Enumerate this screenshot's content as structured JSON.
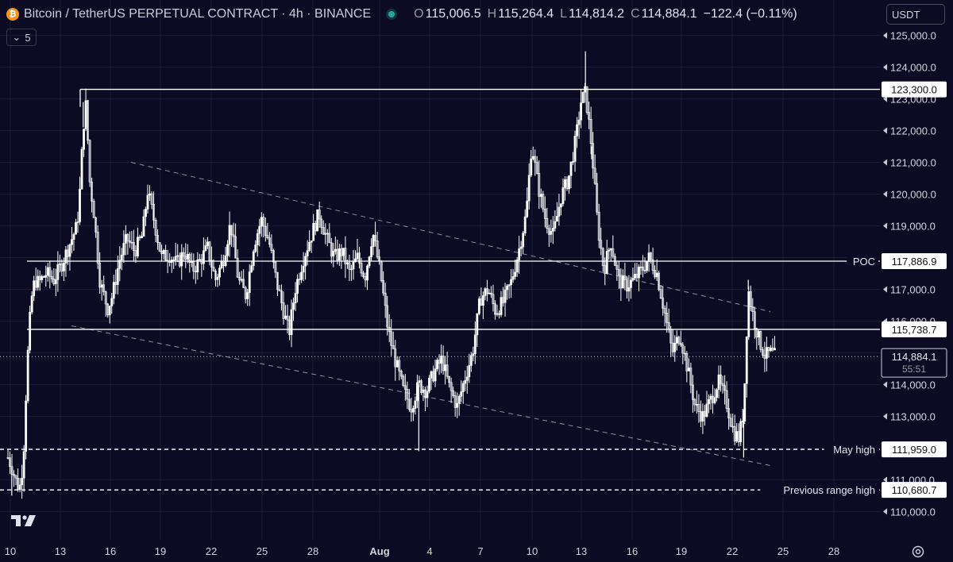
{
  "header": {
    "title": "Bitcoin / TetherUS PERPETUAL CONTRACT · 4h · BINANCE",
    "btc_symbol": "₿",
    "o_label": "O",
    "o_value": "115,006.5",
    "h_label": "H",
    "h_value": "115,264.4",
    "l_label": "L",
    "l_value": "114,814.2",
    "c_label": "C",
    "c_value": "114,884.1",
    "change": "−122.4 (−0.11%)"
  },
  "interval_pill": {
    "label": "5"
  },
  "currency": {
    "label": "USDT"
  },
  "colors": {
    "background": "#0d0b24",
    "candle": "#ffffff",
    "grid": "#1c1b36",
    "axis_text": "#d1d4dc"
  },
  "chart_data": {
    "type": "candlestick",
    "y_axis": {
      "range": [
        109700,
        125200
      ],
      "ticks": [
        110000,
        111000,
        112000,
        113000,
        114000,
        115000,
        116000,
        117000,
        118000,
        119000,
        120000,
        121000,
        122000,
        123000,
        124000,
        125000
      ],
      "tick_labels": [
        "110,000.0",
        "111,000.0",
        "112,000.0",
        "113,000.0",
        "114,000.0",
        "115,000.0",
        "116,000.0",
        "117,000.0",
        "118,000.0",
        "119,000.0",
        "120,000.0",
        "121,000.0",
        "122,000.0",
        "123,000.0",
        "124,000.0",
        "125,000.0"
      ]
    },
    "x_axis": {
      "tick_labels": [
        "10",
        "13",
        "16",
        "19",
        "22",
        "25",
        "28",
        "Aug",
        "4",
        "7",
        "10",
        "13",
        "16",
        "19",
        "22",
        "25",
        "28"
      ]
    },
    "horizontal_levels": [
      {
        "name": "range-top",
        "value": 123300.0,
        "label": "123,300.0",
        "style": "solid",
        "text": ""
      },
      {
        "name": "poc",
        "value": 117886.9,
        "label": "117,886.9",
        "style": "solid",
        "text": "POC"
      },
      {
        "name": "range-mid",
        "value": 115738.7,
        "label": "115,738.7",
        "style": "solid",
        "text": ""
      },
      {
        "name": "may-high",
        "value": 111959.0,
        "label": "111,959.0",
        "style": "dashed",
        "text": "May high"
      },
      {
        "name": "previous-range-high",
        "value": 110680.7,
        "label": "110,680.7",
        "style": "dashed",
        "text": "Previous range high"
      }
    ],
    "current_price": {
      "value": 114884.1,
      "label": "114,884.1",
      "countdown": "55:51"
    },
    "trend_channel": {
      "style": "dashed"
    },
    "price_path": [
      [
        0,
        111700
      ],
      [
        0.5,
        111400
      ],
      [
        1,
        111000
      ],
      [
        1.5,
        110700
      ],
      [
        2,
        111600
      ],
      [
        2.5,
        114600
      ],
      [
        3,
        116600
      ],
      [
        3.5,
        117300
      ],
      [
        4,
        117200
      ],
      [
        5,
        117500
      ],
      [
        6,
        117300
      ],
      [
        7,
        117800
      ],
      [
        8,
        118400
      ],
      [
        9,
        119000
      ],
      [
        9.4,
        120200
      ],
      [
        9.8,
        122100
      ],
      [
        10.2,
        122900
      ],
      [
        10.6,
        120500
      ],
      [
        11.2,
        119400
      ],
      [
        12,
        117200
      ],
      [
        13,
        116400
      ],
      [
        13.6,
        116800
      ],
      [
        14.5,
        117900
      ],
      [
        15.5,
        118600
      ],
      [
        16.5,
        118200
      ],
      [
        17.5,
        118700
      ],
      [
        18.2,
        120100
      ],
      [
        19,
        119200
      ],
      [
        20,
        118000
      ],
      [
        21,
        118100
      ],
      [
        22,
        117800
      ],
      [
        23,
        118200
      ],
      [
        24,
        117600
      ],
      [
        25,
        117900
      ],
      [
        26,
        118300
      ],
      [
        27,
        117300
      ],
      [
        28,
        117900
      ],
      [
        29,
        119100
      ],
      [
        30,
        117300
      ],
      [
        31,
        116800
      ],
      [
        32,
        118400
      ],
      [
        33,
        119200
      ],
      [
        34,
        118500
      ],
      [
        35,
        117200
      ],
      [
        36,
        116200
      ],
      [
        36.6,
        115600
      ],
      [
        37.4,
        117000
      ],
      [
        38.5,
        118000
      ],
      [
        39.5,
        118700
      ],
      [
        40.5,
        119400
      ],
      [
        41.5,
        118600
      ],
      [
        42.5,
        118000
      ],
      [
        43.5,
        118200
      ],
      [
        44.5,
        117500
      ],
      [
        45.5,
        118000
      ],
      [
        46.5,
        117400
      ],
      [
        47.5,
        118800
      ],
      [
        48.5,
        117500
      ],
      [
        49.5,
        115700
      ],
      [
        50.5,
        114700
      ],
      [
        51.5,
        113800
      ],
      [
        52.5,
        113300
      ],
      [
        53.5,
        114000
      ],
      [
        54.5,
        113800
      ],
      [
        55.5,
        114400
      ],
      [
        56.5,
        114800
      ],
      [
        57.5,
        113900
      ],
      [
        58.5,
        113300
      ],
      [
        59.5,
        114200
      ],
      [
        60.5,
        115000
      ],
      [
        61.5,
        116700
      ],
      [
        62.5,
        117000
      ],
      [
        63.5,
        116300
      ],
      [
        64.5,
        116600
      ],
      [
        65.5,
        117200
      ],
      [
        66.5,
        118200
      ],
      [
        67.5,
        119400
      ],
      [
        68.2,
        121600
      ],
      [
        69,
        120300
      ],
      [
        70,
        119200
      ],
      [
        71,
        118700
      ],
      [
        72,
        119900
      ],
      [
        73,
        120500
      ],
      [
        74,
        121800
      ],
      [
        74.6,
        122900
      ],
      [
        75.2,
        123200
      ],
      [
        76,
        121500
      ],
      [
        76.8,
        119000
      ],
      [
        77.6,
        117600
      ],
      [
        78.5,
        118500
      ],
      [
        79.5,
        117300
      ],
      [
        80.5,
        117100
      ],
      [
        81.5,
        117300
      ],
      [
        82.5,
        117600
      ],
      [
        83.5,
        118000
      ],
      [
        84.5,
        117500
      ],
      [
        85.5,
        116300
      ],
      [
        86.5,
        115000
      ],
      [
        87.5,
        115600
      ],
      [
        88.5,
        114500
      ],
      [
        89.5,
        113300
      ],
      [
        90.5,
        113000
      ],
      [
        91.5,
        113500
      ],
      [
        92.5,
        114100
      ],
      [
        93.5,
        113500
      ],
      [
        94.5,
        112500
      ],
      [
        95.2,
        112300
      ],
      [
        95.8,
        113200
      ],
      [
        96.4,
        117000
      ],
      [
        97,
        116200
      ],
      [
        97.8,
        115400
      ],
      [
        98.6,
        114900
      ],
      [
        99.3,
        115000
      ],
      [
        100,
        114884
      ]
    ],
    "wicks": [
      [
        9.8,
        122900
      ],
      [
        75.2,
        124500
      ],
      [
        76,
        121100
      ],
      [
        0.5,
        110500
      ],
      [
        53.5,
        111900
      ],
      [
        95.8,
        111700
      ],
      [
        96.4,
        117300
      ]
    ]
  }
}
